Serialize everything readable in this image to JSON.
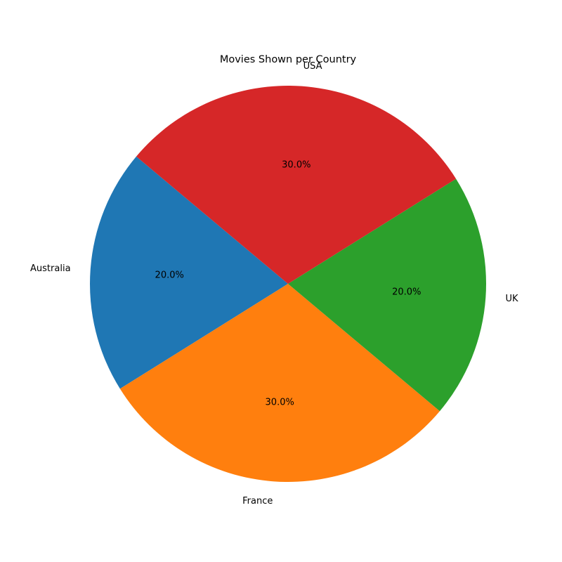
{
  "chart_data": {
    "type": "pie",
    "title": "Movies Shown per Country",
    "categories": [
      "Australia",
      "France",
      "UK",
      "USA"
    ],
    "values": [
      20,
      30,
      20,
      30
    ],
    "percent_labels": [
      "20.0%",
      "30.0%",
      "20.0%",
      "30.0%"
    ],
    "colors": [
      "#1f77b4",
      "#ff7f0e",
      "#2ca02c",
      "#d62728"
    ],
    "start_angle_deg": 140,
    "direction": "counterclockwise"
  }
}
